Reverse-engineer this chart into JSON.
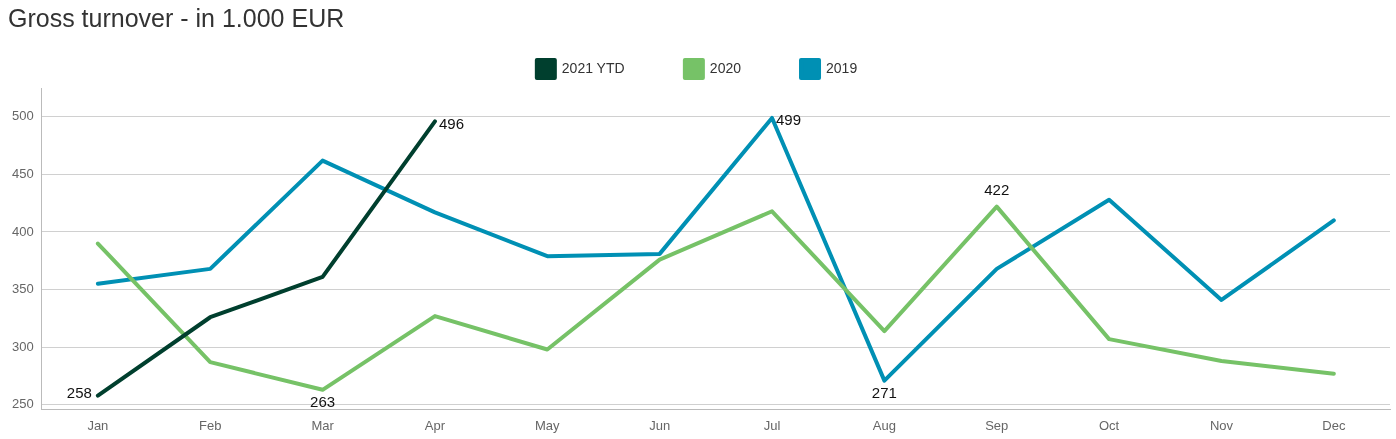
{
  "chart_data": {
    "type": "line",
    "title": "Gross turnover - in 1.000 EUR",
    "categories": [
      "Jan",
      "Feb",
      "Mar",
      "Apr",
      "May",
      "Jun",
      "Jul",
      "Aug",
      "Sep",
      "Oct",
      "Nov",
      "Dec"
    ],
    "series": [
      {
        "name": "2021 YTD",
        "color": "#003f2e",
        "values": [
          258,
          326,
          361,
          496,
          null,
          null,
          null,
          null,
          null,
          null,
          null,
          null
        ],
        "value_labels": [
          "258",
          null,
          null,
          "496",
          null,
          null,
          null,
          null,
          null,
          null,
          null,
          null
        ]
      },
      {
        "name": "2020",
        "color": "#76c267",
        "values": [
          390,
          287,
          263,
          327,
          298,
          376,
          418,
          314,
          422,
          307,
          288,
          277
        ],
        "value_labels": [
          null,
          null,
          "263",
          null,
          null,
          null,
          null,
          null,
          "422",
          null,
          null,
          null
        ]
      },
      {
        "name": "2019",
        "color": "#0090b4",
        "values": [
          355,
          368,
          462,
          417,
          379,
          381,
          499,
          271,
          368,
          428,
          341,
          410
        ],
        "value_labels": [
          null,
          null,
          null,
          null,
          null,
          null,
          "499",
          "271",
          null,
          null,
          null,
          null
        ]
      }
    ],
    "ylim": [
      246,
      525
    ],
    "yticks": [
      250,
      300,
      350,
      400,
      450,
      500
    ],
    "grid": "y",
    "legend": "top",
    "marker": "none",
    "line_style": "solid"
  }
}
